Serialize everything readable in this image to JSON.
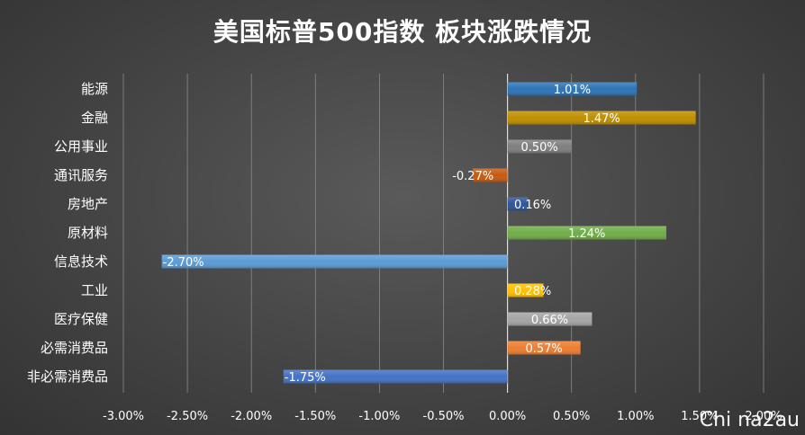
{
  "chart_data": {
    "type": "bar",
    "orientation": "horizontal",
    "title": "美国标普500指数 板块涨跌情况",
    "categories": [
      "能源",
      "金融",
      "公用事业",
      "通讯服务",
      "房地产",
      "原材料",
      "信息技术",
      "工业",
      "医疗保健",
      "必需消费品",
      "非必需消费品"
    ],
    "values": [
      1.01,
      1.47,
      0.5,
      -0.27,
      0.16,
      1.24,
      -2.7,
      0.28,
      0.66,
      0.57,
      -1.75
    ],
    "value_labels": [
      "1.01%",
      "1.47%",
      "0.50%",
      "-0.27%",
      "0.16%",
      "1.24%",
      "-2.70%",
      "0.28%",
      "0.66%",
      "0.57%",
      "-1.75%"
    ],
    "colors": [
      "#2e75b6",
      "#bf8f00",
      "#7f7f7f",
      "#c55a11",
      "#2f5597",
      "#70ad47",
      "#5b9bd5",
      "#ffc000",
      "#a5a5a5",
      "#ed7d31",
      "#4472c4"
    ],
    "xlim": [
      -3.0,
      2.0
    ],
    "xticks": [
      -3.0,
      -2.5,
      -2.0,
      -1.5,
      -1.0,
      -0.5,
      0.0,
      0.5,
      1.0,
      1.5,
      2.0
    ],
    "xtick_labels": [
      "-3.00%",
      "-2.50%",
      "-2.00%",
      "-1.50%",
      "-1.00%",
      "-0.50%",
      "0.00%",
      "0.50%",
      "1.00%",
      "1.50%",
      "2.00%"
    ],
    "xlabel": "",
    "ylabel": "",
    "grid": true,
    "legend": "none"
  },
  "watermark": "Chi na2au"
}
